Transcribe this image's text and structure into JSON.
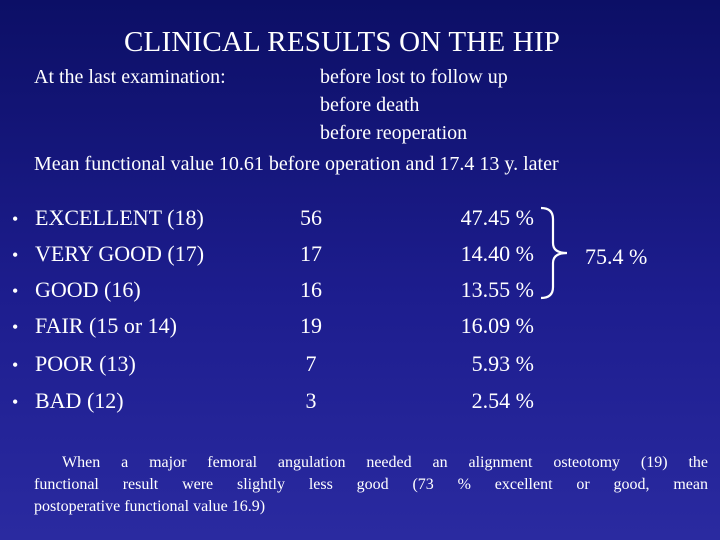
{
  "title": "CLINICAL RESULTS ON THE HIP",
  "lead": "At the last examination:",
  "conditions": [
    "before lost to follow up",
    "before death",
    "before reoperation"
  ],
  "mean": "Mean functional value 10.61 before operation and 17.4  13 y. later",
  "results": [
    {
      "label": "EXCELLENT (18)",
      "count": "56",
      "pct": "47.45 %"
    },
    {
      "label": "VERY GOOD (17)",
      "count": "17",
      "pct": "14.40 %"
    },
    {
      "label": "GOOD (16)",
      "count": "16",
      "pct": "13.55 %"
    },
    {
      "label": "FAIR (15 or 14)",
      "count": "19",
      "pct": "16.09 %"
    },
    {
      "label": "POOR (13)",
      "count": "7",
      "pct": "5.93 %"
    },
    {
      "label": "BAD (12)",
      "count": "3",
      "pct": "2.54 %"
    }
  ],
  "bullet": "•",
  "group_total": "75.4 %",
  "note_lines": [
    "When a major femoral angulation needed an alignment osteotomy (19) the",
    "functional result were slightly less good (73 % excellent or good, mean",
    "postoperative functional value 16.9)"
  ],
  "colors": {
    "background": "#1a1a86",
    "text": "#ffffff"
  }
}
